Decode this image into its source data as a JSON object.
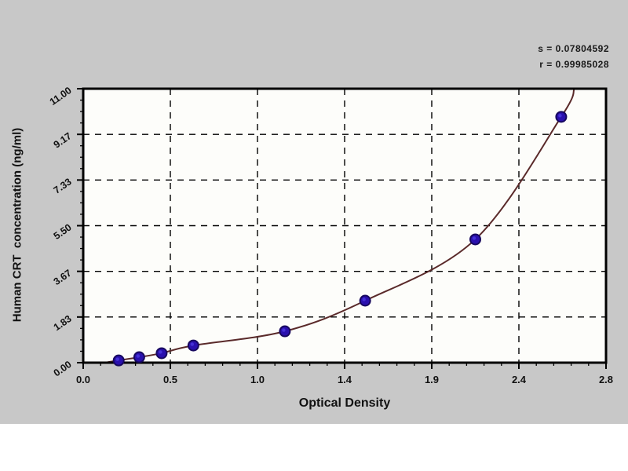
{
  "figure": {
    "background": "#c8c8c8",
    "stats": {
      "line1": "s = 0.07804592",
      "line2": "r = 0.99985028"
    }
  },
  "chart_data": {
    "type": "scatter",
    "title": "",
    "xlabel": "Optical Density",
    "ylabel": "Human CRT  concentration (ng/ml)",
    "xlim": [
      0,
      2.8
    ],
    "ylim": [
      0,
      11
    ],
    "x_tick_labels": [
      "0.0",
      "0.5",
      "1.0",
      "1.4",
      "1.9",
      "2.4",
      "2.8"
    ],
    "y_tick_labels": [
      "0.00",
      "1.83",
      "3.67",
      "5.50",
      "7.33",
      "9.17",
      "11.00"
    ],
    "x_minor_per_interval": 4,
    "y_minor_per_interval": 3,
    "grid": {
      "show": true,
      "style": "dashed",
      "color": "#000000"
    },
    "legend": {
      "show": false
    },
    "annotations": [
      "s = 0.07804592",
      "r = 0.99985028"
    ],
    "series": [
      {
        "name": "standard-points",
        "points": [
          {
            "x": 0.19,
            "y": 0.09
          },
          {
            "x": 0.3,
            "y": 0.22
          },
          {
            "x": 0.42,
            "y": 0.38
          },
          {
            "x": 0.59,
            "y": 0.69
          },
          {
            "x": 1.08,
            "y": 1.26
          },
          {
            "x": 1.51,
            "y": 2.49
          },
          {
            "x": 2.1,
            "y": 4.95
          },
          {
            "x": 2.56,
            "y": 9.87
          }
        ]
      }
    ],
    "fit_curve": {
      "start": {
        "x": 0.13,
        "y": 0.02
      },
      "end": {
        "x": 2.63,
        "y": 11.0
      }
    },
    "colors": {
      "point_fill": "#2a10ae",
      "point_edge": "#17085f",
      "point_highlight": "#4531d6",
      "curve": "#5a2a2a",
      "grid": "#000000",
      "frame": "#000000",
      "plot_bg": "#fdfdfa",
      "figure_bg": "#c8c8c8",
      "text": "#111111"
    }
  }
}
